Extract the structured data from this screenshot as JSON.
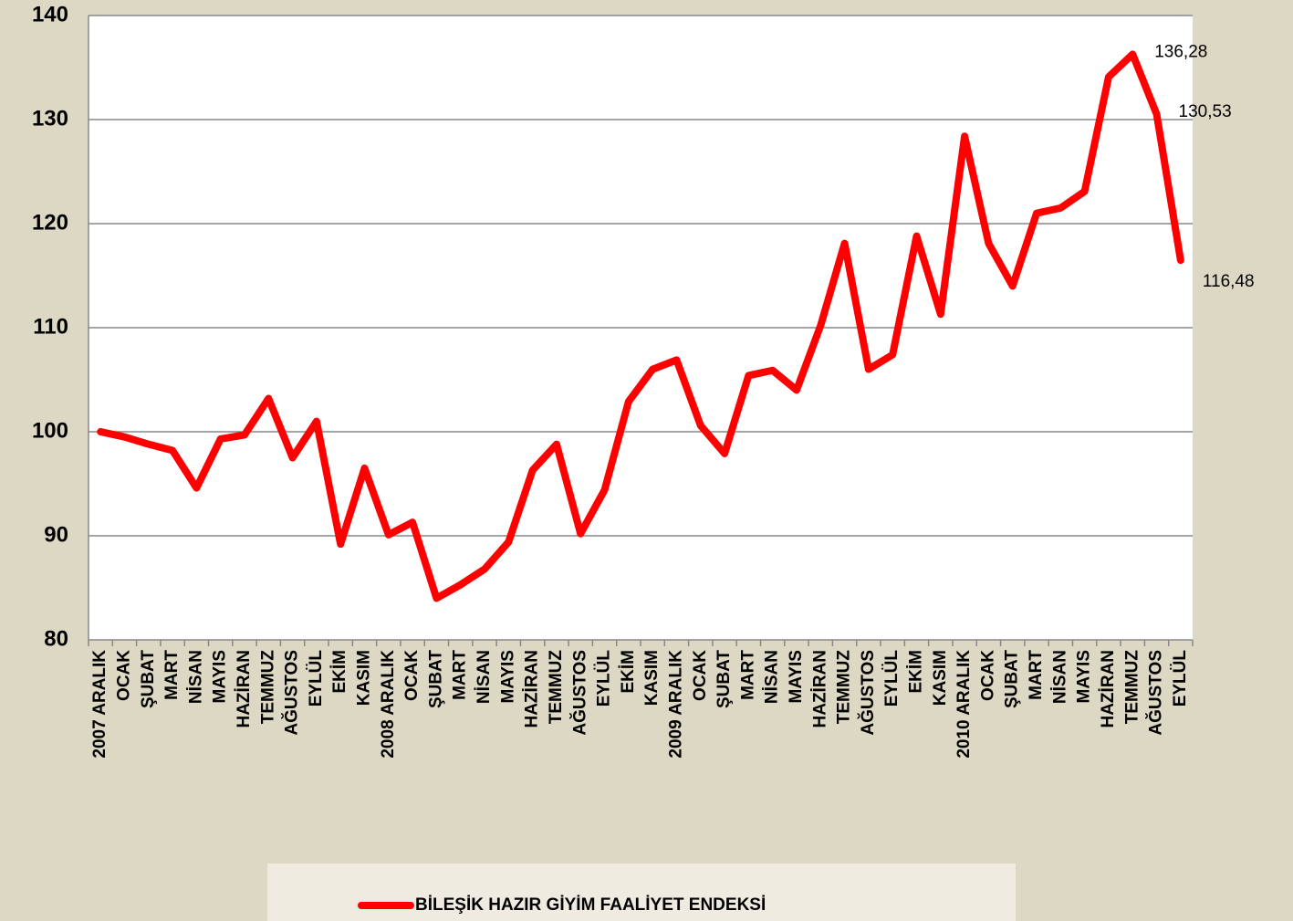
{
  "chart_data": {
    "type": "line",
    "categories": [
      "2007 ARALIK",
      "OCAK",
      "ŞUBAT",
      "MART",
      "NİSAN",
      "MAYIS",
      "HAZİRAN",
      "TEMMUZ",
      "AĞUSTOS",
      "EYLÜL",
      "EKİM",
      "KASIM",
      "2008 ARALIK",
      "OCAK",
      "ŞUBAT",
      "MART",
      "NİSAN",
      "MAYIS",
      "HAZİRAN",
      "TEMMUZ",
      "AĞUSTOS",
      "EYLÜL",
      "EKİM",
      "KASIM",
      "2009 ARALIK",
      "OCAK",
      "ŞUBAT",
      "MART",
      "NİSAN",
      "MAYIS",
      "HAZİRAN",
      "TEMMUZ",
      "AĞUSTOS",
      "EYLÜL",
      "EKİM",
      "KASIM",
      "2010 ARALIK",
      "OCAK",
      "ŞUBAT",
      "MART",
      "NİSAN",
      "MAYIS",
      "HAZİRAN",
      "TEMMUZ",
      "AĞUSTOS",
      "EYLÜL"
    ],
    "series": [
      {
        "name": "BİLEŞİK HAZIR GİYİM FAALİYET ENDEKSİ",
        "color": "#ff0000",
        "values": [
          100,
          99.5,
          98.8,
          98.2,
          94.6,
          99.3,
          99.7,
          103.2,
          97.5,
          101,
          89.2,
          96.5,
          90.1,
          91.3,
          84,
          85.3,
          86.8,
          89.4,
          96.3,
          98.8,
          90.2,
          94.4,
          102.9,
          106,
          106.9,
          100.6,
          97.9,
          105.4,
          105.9,
          104,
          110.2,
          118.1,
          106,
          107.4,
          118.8,
          111.3,
          128.4,
          118.1,
          114,
          121,
          121.5,
          123.1,
          134.1,
          136.28,
          130.53,
          116.48
        ],
        "value_labels": [
          null,
          null,
          null,
          null,
          null,
          null,
          null,
          null,
          null,
          null,
          null,
          null,
          null,
          null,
          null,
          null,
          null,
          null,
          null,
          null,
          null,
          null,
          null,
          null,
          null,
          null,
          null,
          null,
          null,
          null,
          null,
          null,
          null,
          null,
          null,
          null,
          null,
          null,
          null,
          null,
          null,
          null,
          null,
          "136,28",
          "130,53",
          "116,48"
        ]
      }
    ],
    "ylim": [
      80,
      140
    ],
    "yticks": [
      80,
      90,
      100,
      110,
      120,
      130,
      140
    ],
    "grid": true
  }
}
